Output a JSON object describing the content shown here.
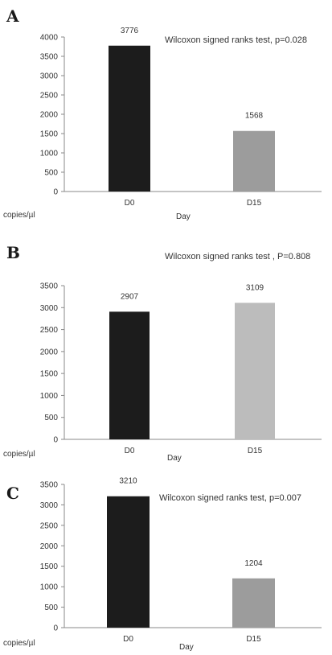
{
  "chart_data": [
    {
      "panel": "A",
      "type": "bar",
      "categories": [
        "D0",
        "D15"
      ],
      "values": [
        3776,
        1568
      ],
      "data_labels": [
        "3776",
        "1568"
      ],
      "bar_colors": [
        "#1c1c1c",
        "#9c9c9c"
      ],
      "ylim": [
        0,
        4000
      ],
      "yticks": [
        0,
        500,
        1000,
        1500,
        2000,
        2500,
        3000,
        3500,
        4000
      ],
      "ylabel": "copies/µl",
      "xlabel": "Day",
      "annotation": "Wilcoxon signed ranks test, p=0.028",
      "grid": false
    },
    {
      "panel": "B",
      "type": "bar",
      "categories": [
        "D0",
        "D15"
      ],
      "values": [
        2907,
        3109
      ],
      "data_labels": [
        "2907",
        "3109"
      ],
      "bar_colors": [
        "#1c1c1c",
        "#bcbcbc"
      ],
      "ylim": [
        0,
        3500
      ],
      "yticks": [
        0,
        500,
        1000,
        1500,
        2000,
        2500,
        3000,
        3500
      ],
      "ylabel": "copies/µl",
      "xlabel": "Day",
      "annotation": "Wilcoxon signed ranks  test , P=0.808",
      "grid": false
    },
    {
      "panel": "C",
      "type": "bar",
      "categories": [
        "D0",
        "D15"
      ],
      "values": [
        3210,
        1204
      ],
      "data_labels": [
        "3210",
        "1204"
      ],
      "bar_colors": [
        "#1c1c1c",
        "#9c9c9c"
      ],
      "ylim": [
        0,
        3500
      ],
      "yticks": [
        0,
        500,
        1000,
        1500,
        2000,
        2500,
        3000,
        3500
      ],
      "ylabel": "copies/µl",
      "xlabel": "Day",
      "annotation": "Wilcoxon signed ranks test, p=0.007",
      "grid": false
    }
  ]
}
